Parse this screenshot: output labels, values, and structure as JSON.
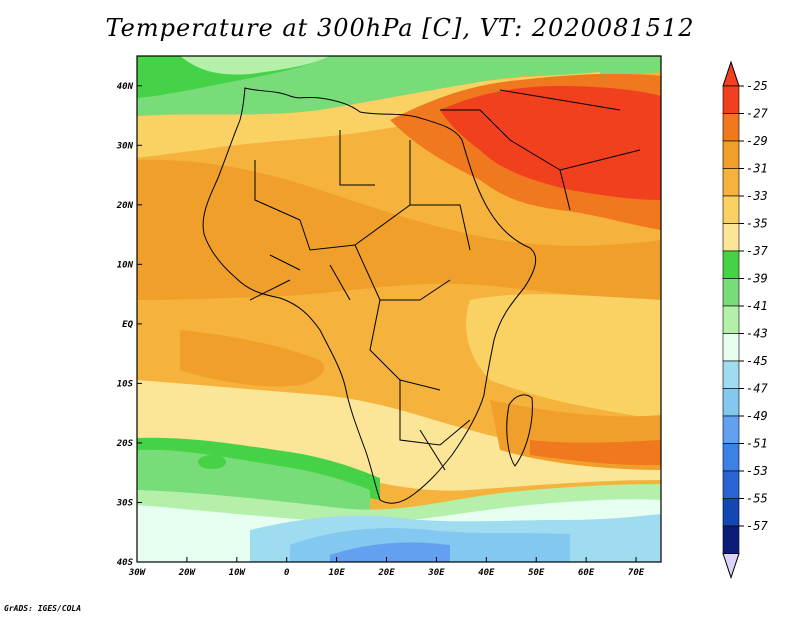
{
  "title": "Temperature at 300hPa [C], VT: 2020081512",
  "credit": "GrADS: IGES/COLA",
  "map": {
    "lon_labels": [
      "30W",
      "20W",
      "10W",
      "0",
      "10E",
      "20E",
      "30E",
      "40E",
      "50E",
      "60E",
      "70E"
    ],
    "lat_labels": [
      "40N",
      "30N",
      "20N",
      "10N",
      "EQ",
      "10S",
      "20S",
      "30S",
      "40S"
    ],
    "lon_range": [
      -30,
      75
    ],
    "lat_range": [
      -40,
      45
    ]
  },
  "colorbar": {
    "labels": [
      "-25",
      "-27",
      "-29",
      "-31",
      "-33",
      "-35",
      "-37",
      "-39",
      "-41",
      "-43",
      "-45",
      "-47",
      "-49",
      "-51",
      "-53",
      "-55",
      "-57"
    ],
    "colors": [
      "#f0401e",
      "#f0781e",
      "#f0a02a",
      "#f5b23c",
      "#fad264",
      "#fae696",
      "#46d246",
      "#78dc78",
      "#b4f0aa",
      "#e6fff0",
      "#a0dcf0",
      "#82c8f0",
      "#64a0f0",
      "#3c82e6",
      "#2864d2",
      "#1446b4",
      "#0a1e78"
    ],
    "top_triangle_color": "#f0401e",
    "bottom_triangle_color": "#dcd2fa"
  }
}
